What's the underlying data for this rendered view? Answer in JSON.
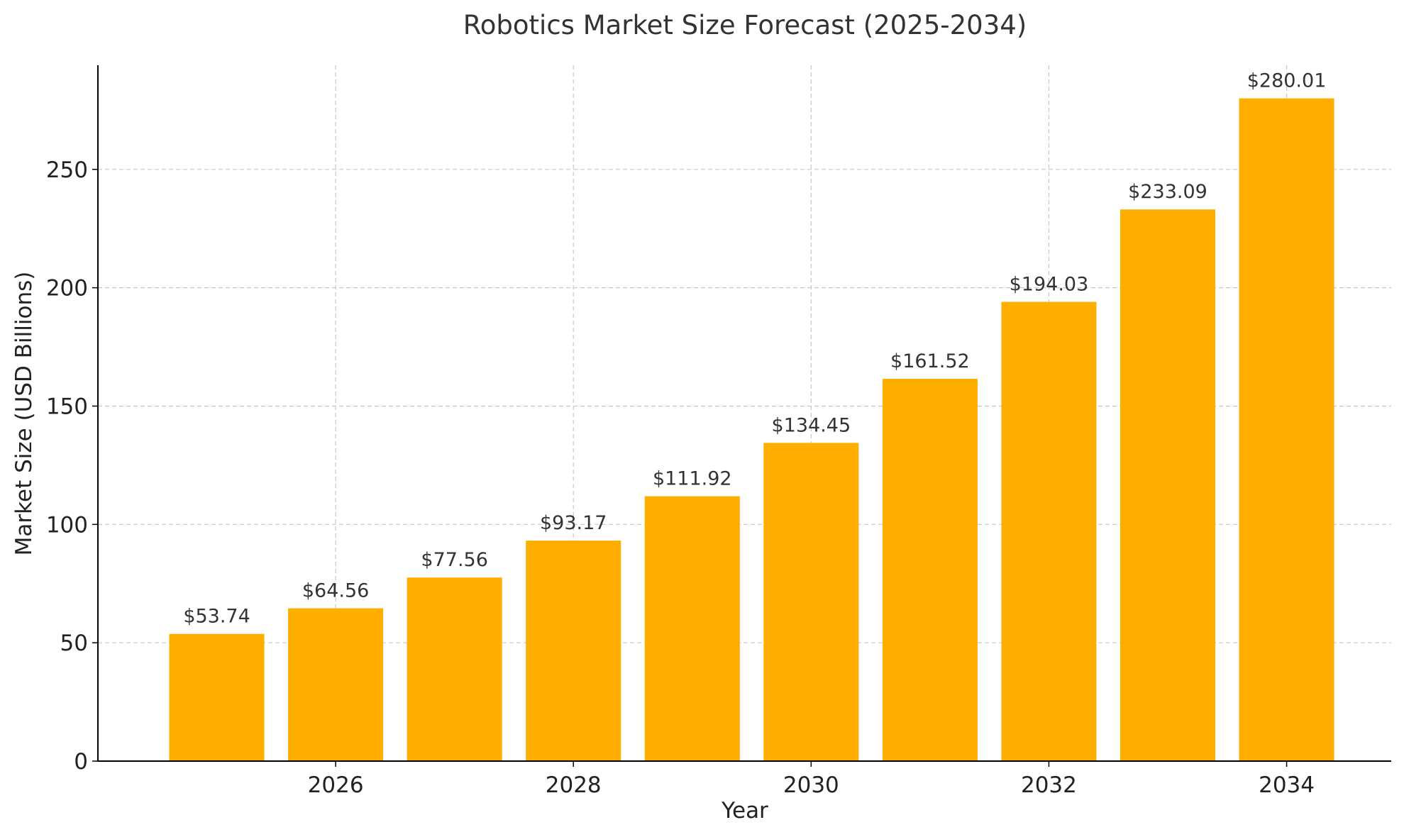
{
  "chart_data": {
    "type": "bar",
    "title": "Robotics Market Size Forecast (2025-2034)",
    "xlabel": "Year",
    "ylabel": "Market Size (USD Billions)",
    "categories": [
      2025,
      2026,
      2027,
      2028,
      2029,
      2030,
      2031,
      2032,
      2033,
      2034
    ],
    "values": [
      53.74,
      64.56,
      77.56,
      93.17,
      111.92,
      134.45,
      161.52,
      194.03,
      233.09,
      280.01
    ],
    "data_labels": [
      "$53.74",
      "$64.56",
      "$77.56",
      "$93.17",
      "$111.92",
      "$134.45",
      "$161.52",
      "$194.03",
      "$233.09",
      "$280.01"
    ],
    "x_ticks": [
      2026,
      2028,
      2030,
      2032,
      2034
    ],
    "x_tick_labels": [
      "2026",
      "2028",
      "2030",
      "2032",
      "2034"
    ],
    "y_ticks": [
      0,
      50,
      100,
      150,
      200,
      250
    ],
    "y_tick_labels": [
      "0",
      "50",
      "100",
      "150",
      "200",
      "250"
    ],
    "xlim": [
      2024.0,
      2034.88
    ],
    "ylim": [
      0,
      294
    ],
    "grid": true,
    "bar_color": "#FFAE00",
    "grid_color": "#c8c8c8"
  }
}
